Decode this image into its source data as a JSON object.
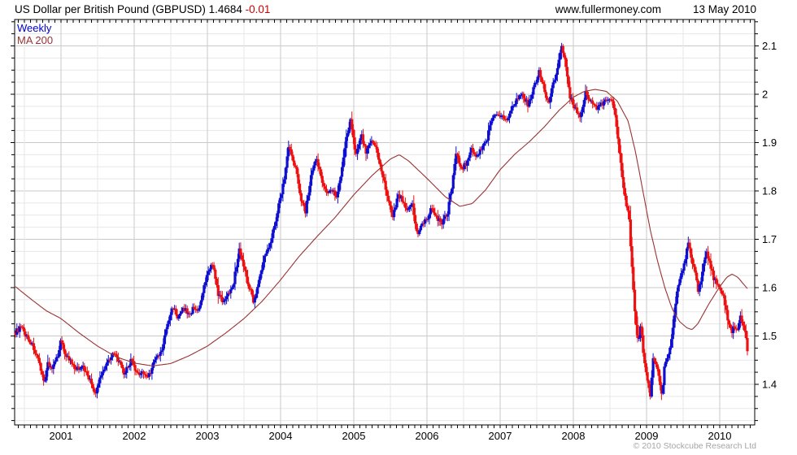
{
  "header": {
    "title": "US Dollar per British Pound (GBPUSD)",
    "price": "1.4684",
    "change": "-0.01",
    "website": "www.fullermoney.com",
    "date": "13 May 2010"
  },
  "legend": {
    "series1": "Weekly",
    "series2": "MA 200"
  },
  "footer": {
    "copyright": "© 2010 Stockcube Research Ltd"
  },
  "colors": {
    "up_bar": "#0f0fd2",
    "down_bar": "#ee1111",
    "ma_line": "#993333",
    "grid_minor": "#e7e7e7",
    "grid_major": "#c9c9c9",
    "axis": "#000000",
    "label": "#000000",
    "change_text": "#cc0000",
    "legend_weekly": "#0000cc",
    "copyright_text": "#a6a6a6"
  },
  "chart_data": {
    "type": "candlestick",
    "title": "US Dollar per British Pound (GBPUSD), weekly bars with 200-day moving average",
    "grid": true,
    "legend_position": "top-left",
    "last_price": 1.4684,
    "change": -0.01,
    "x_axis": {
      "tick_values": [
        2001,
        2002,
        2003,
        2004,
        2005,
        2006,
        2007,
        2008,
        2009,
        2010
      ],
      "tick_labels": [
        "2001",
        "2002",
        "2003",
        "2004",
        "2005",
        "2006",
        "2007",
        "2008",
        "2009",
        "2010"
      ],
      "range_years": [
        2000.37,
        2010.45
      ],
      "minor_step_years": 0.5,
      "axis_tick_step_years": 0.0833
    },
    "y_axis": {
      "tick_values": [
        2.1,
        2.0,
        1.9,
        1.8,
        1.7,
        1.6,
        1.5,
        1.4
      ],
      "tick_labels": [
        "2.1",
        "2",
        "1.9",
        "1.8",
        "1.7",
        "1.6",
        "1.5",
        "1.4"
      ],
      "range": [
        1.316,
        2.155
      ],
      "minor_step": 0.025
    },
    "series": [
      {
        "name": "Weekly",
        "type": "ohlc-weekly",
        "close_anchors": [
          [
            2000.378,
            1.508
          ],
          [
            2000.45,
            1.518
          ],
          [
            2000.54,
            1.497
          ],
          [
            2000.62,
            1.478
          ],
          [
            2000.7,
            1.443
          ],
          [
            2000.72,
            1.425
          ],
          [
            2000.78,
            1.408
          ],
          [
            2000.82,
            1.445
          ],
          [
            2000.88,
            1.432
          ],
          [
            2000.94,
            1.452
          ],
          [
            2001.0,
            1.492
          ],
          [
            2001.06,
            1.462
          ],
          [
            2001.12,
            1.449
          ],
          [
            2001.2,
            1.428
          ],
          [
            2001.28,
            1.44
          ],
          [
            2001.36,
            1.421
          ],
          [
            2001.44,
            1.392
          ],
          [
            2001.47,
            1.375
          ],
          [
            2001.52,
            1.408
          ],
          [
            2001.6,
            1.438
          ],
          [
            2001.7,
            1.464
          ],
          [
            2001.78,
            1.452
          ],
          [
            2001.86,
            1.42
          ],
          [
            2001.93,
            1.442
          ],
          [
            2001.96,
            1.45
          ],
          [
            2002.04,
            1.418
          ],
          [
            2002.1,
            1.428
          ],
          [
            2002.16,
            1.415
          ],
          [
            2002.22,
            1.424
          ],
          [
            2002.29,
            1.453
          ],
          [
            2002.37,
            1.465
          ],
          [
            2002.45,
            1.522
          ],
          [
            2002.53,
            1.562
          ],
          [
            2002.6,
            1.535
          ],
          [
            2002.68,
            1.558
          ],
          [
            2002.75,
            1.543
          ],
          [
            2002.82,
            1.56
          ],
          [
            2002.89,
            1.553
          ],
          [
            2002.96,
            1.604
          ],
          [
            2003.03,
            1.642
          ],
          [
            2003.07,
            1.65
          ],
          [
            2003.14,
            1.59
          ],
          [
            2003.2,
            1.572
          ],
          [
            2003.28,
            1.585
          ],
          [
            2003.36,
            1.613
          ],
          [
            2003.44,
            1.682
          ],
          [
            2003.5,
            1.64
          ],
          [
            2003.56,
            1.608
          ],
          [
            2003.63,
            1.572
          ],
          [
            2003.7,
            1.61
          ],
          [
            2003.78,
            1.662
          ],
          [
            2003.85,
            1.692
          ],
          [
            2003.92,
            1.73
          ],
          [
            2003.99,
            1.782
          ],
          [
            2004.05,
            1.825
          ],
          [
            2004.11,
            1.896
          ],
          [
            2004.16,
            1.865
          ],
          [
            2004.22,
            1.838
          ],
          [
            2004.28,
            1.785
          ],
          [
            2004.34,
            1.758
          ],
          [
            2004.42,
            1.832
          ],
          [
            2004.49,
            1.865
          ],
          [
            2004.55,
            1.833
          ],
          [
            2004.62,
            1.795
          ],
          [
            2004.7,
            1.805
          ],
          [
            2004.77,
            1.788
          ],
          [
            2004.84,
            1.852
          ],
          [
            2004.91,
            1.92
          ],
          [
            2004.96,
            1.948
          ],
          [
            2005.03,
            1.872
          ],
          [
            2005.1,
            1.918
          ],
          [
            2005.17,
            1.878
          ],
          [
            2005.24,
            1.908
          ],
          [
            2005.31,
            1.885
          ],
          [
            2005.38,
            1.838
          ],
          [
            2005.45,
            1.795
          ],
          [
            2005.53,
            1.742
          ],
          [
            2005.6,
            1.792
          ],
          [
            2005.67,
            1.78
          ],
          [
            2005.74,
            1.758
          ],
          [
            2005.8,
            1.772
          ],
          [
            2005.86,
            1.712
          ],
          [
            2005.93,
            1.728
          ],
          [
            2006.0,
            1.742
          ],
          [
            2006.06,
            1.768
          ],
          [
            2006.12,
            1.748
          ],
          [
            2006.2,
            1.732
          ],
          [
            2006.28,
            1.755
          ],
          [
            2006.34,
            1.808
          ],
          [
            2006.4,
            1.878
          ],
          [
            2006.47,
            1.845
          ],
          [
            2006.54,
            1.858
          ],
          [
            2006.61,
            1.888
          ],
          [
            2006.68,
            1.868
          ],
          [
            2006.75,
            1.892
          ],
          [
            2006.82,
            1.908
          ],
          [
            2006.88,
            1.948
          ],
          [
            2006.95,
            1.962
          ],
          [
            2007.02,
            1.958
          ],
          [
            2007.08,
            1.943
          ],
          [
            2007.16,
            1.972
          ],
          [
            2007.24,
            1.992
          ],
          [
            2007.31,
            1.998
          ],
          [
            2007.38,
            1.978
          ],
          [
            2007.45,
            2.008
          ],
          [
            2007.53,
            2.046
          ],
          [
            2007.6,
            2.012
          ],
          [
            2007.66,
            1.978
          ],
          [
            2007.73,
            2.025
          ],
          [
            2007.8,
            2.068
          ],
          [
            2007.84,
            2.102
          ],
          [
            2007.89,
            2.062
          ],
          [
            2007.95,
            1.998
          ],
          [
            2008.02,
            1.972
          ],
          [
            2008.09,
            1.948
          ],
          [
            2008.16,
            2.002
          ],
          [
            2008.23,
            1.986
          ],
          [
            2008.31,
            1.972
          ],
          [
            2008.39,
            1.978
          ],
          [
            2008.46,
            1.992
          ],
          [
            2008.53,
            1.982
          ],
          [
            2008.58,
            1.952
          ],
          [
            2008.64,
            1.862
          ],
          [
            2008.7,
            1.792
          ],
          [
            2008.76,
            1.742
          ],
          [
            2008.81,
            1.618
          ],
          [
            2008.85,
            1.532
          ],
          [
            2008.89,
            1.482
          ],
          [
            2008.92,
            1.522
          ],
          [
            2008.96,
            1.462
          ],
          [
            2009.02,
            1.402
          ],
          [
            2009.05,
            1.378
          ],
          [
            2009.09,
            1.458
          ],
          [
            2009.13,
            1.438
          ],
          [
            2009.17,
            1.412
          ],
          [
            2009.21,
            1.382
          ],
          [
            2009.25,
            1.442
          ],
          [
            2009.31,
            1.468
          ],
          [
            2009.36,
            1.518
          ],
          [
            2009.41,
            1.582
          ],
          [
            2009.46,
            1.622
          ],
          [
            2009.52,
            1.652
          ],
          [
            2009.57,
            1.692
          ],
          [
            2009.62,
            1.655
          ],
          [
            2009.66,
            1.632
          ],
          [
            2009.71,
            1.588
          ],
          [
            2009.77,
            1.642
          ],
          [
            2009.82,
            1.672
          ],
          [
            2009.87,
            1.648
          ],
          [
            2009.92,
            1.618
          ],
          [
            2009.97,
            1.608
          ],
          [
            2010.03,
            1.592
          ],
          [
            2010.08,
            1.562
          ],
          [
            2010.12,
            1.528
          ],
          [
            2010.16,
            1.508
          ],
          [
            2010.2,
            1.522
          ],
          [
            2010.24,
            1.512
          ],
          [
            2010.28,
            1.538
          ],
          [
            2010.32,
            1.522
          ],
          [
            2010.35,
            1.502
          ],
          [
            2010.378,
            1.4684
          ]
        ]
      },
      {
        "name": "MA 200",
        "type": "line",
        "points": [
          [
            2000.378,
            1.602
          ],
          [
            2000.6,
            1.575
          ],
          [
            2000.8,
            1.552
          ],
          [
            2001.0,
            1.536
          ],
          [
            2001.25,
            1.506
          ],
          [
            2001.5,
            1.479
          ],
          [
            2001.75,
            1.457
          ],
          [
            2002.0,
            1.444
          ],
          [
            2002.25,
            1.438
          ],
          [
            2002.5,
            1.443
          ],
          [
            2002.75,
            1.459
          ],
          [
            2003.0,
            1.479
          ],
          [
            2003.25,
            1.506
          ],
          [
            2003.5,
            1.536
          ],
          [
            2003.75,
            1.572
          ],
          [
            2004.0,
            1.616
          ],
          [
            2004.25,
            1.664
          ],
          [
            2004.5,
            1.706
          ],
          [
            2004.75,
            1.746
          ],
          [
            2005.0,
            1.792
          ],
          [
            2005.25,
            1.832
          ],
          [
            2005.5,
            1.866
          ],
          [
            2005.62,
            1.875
          ],
          [
            2005.75,
            1.862
          ],
          [
            2006.0,
            1.826
          ],
          [
            2006.25,
            1.788
          ],
          [
            2006.45,
            1.768
          ],
          [
            2006.62,
            1.774
          ],
          [
            2006.8,
            1.802
          ],
          [
            2007.0,
            1.844
          ],
          [
            2007.2,
            1.876
          ],
          [
            2007.4,
            1.902
          ],
          [
            2007.6,
            1.932
          ],
          [
            2007.8,
            1.966
          ],
          [
            2008.0,
            1.994
          ],
          [
            2008.15,
            2.006
          ],
          [
            2008.3,
            2.01
          ],
          [
            2008.45,
            2.006
          ],
          [
            2008.6,
            1.986
          ],
          [
            2008.75,
            1.944
          ],
          [
            2008.85,
            1.88
          ],
          [
            2008.95,
            1.8
          ],
          [
            2009.05,
            1.72
          ],
          [
            2009.15,
            1.655
          ],
          [
            2009.25,
            1.6
          ],
          [
            2009.35,
            1.556
          ],
          [
            2009.45,
            1.53
          ],
          [
            2009.55,
            1.517
          ],
          [
            2009.62,
            1.513
          ],
          [
            2009.7,
            1.525
          ],
          [
            2009.85,
            1.566
          ],
          [
            2010.0,
            1.602
          ],
          [
            2010.1,
            1.622
          ],
          [
            2010.17,
            1.628
          ],
          [
            2010.25,
            1.621
          ],
          [
            2010.31,
            1.61
          ],
          [
            2010.378,
            1.598
          ]
        ]
      }
    ]
  }
}
